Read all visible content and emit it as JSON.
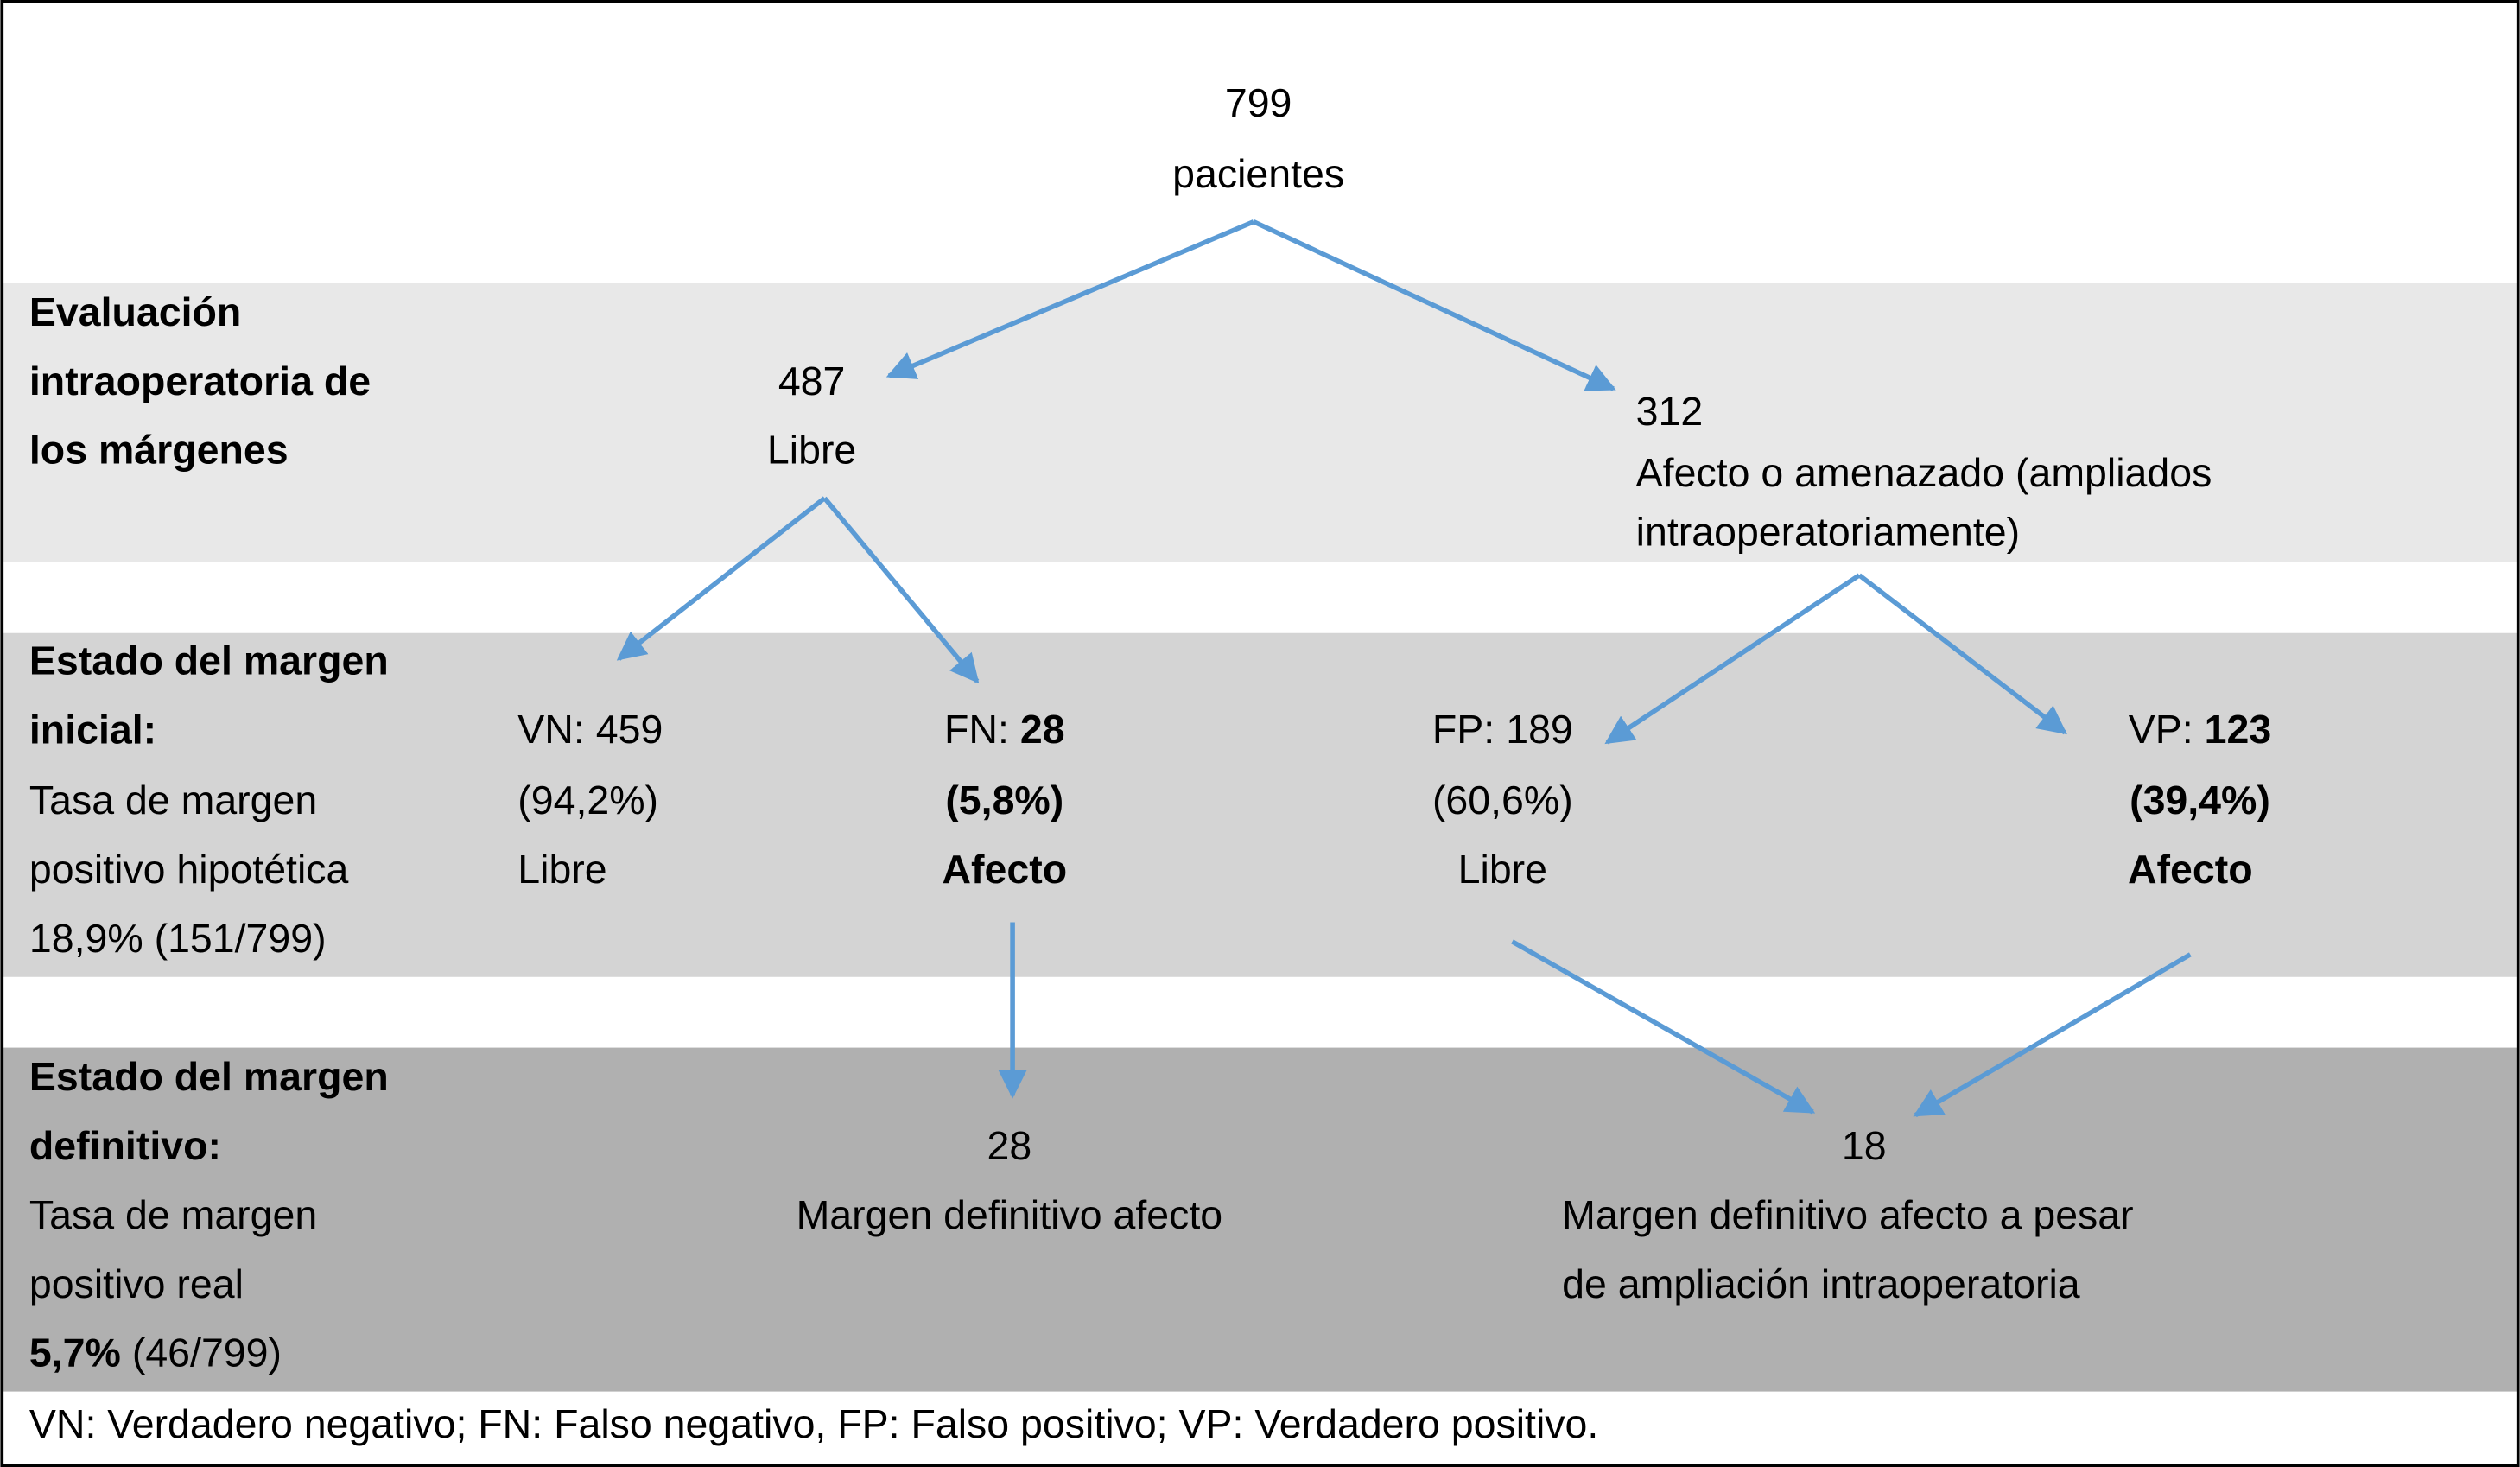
{
  "root": {
    "count": "799",
    "label": "pacientes"
  },
  "sections": [
    {
      "title": [
        "Evaluación",
        "intraoperatoria de",
        "los márgenes"
      ]
    },
    {
      "title": [
        "Estado del margen",
        "inicial:"
      ],
      "subtitle": [
        "Tasa de margen",
        "positivo hipotética"
      ],
      "rate": "18,9% (151/799)"
    },
    {
      "title": [
        "Estado del margen",
        "definitivo:"
      ],
      "subtitle": [
        "Tasa de margen",
        "positivo real"
      ],
      "rate": {
        "value": "5,7%",
        "detail": "(46/799)"
      }
    }
  ],
  "intraoperative": {
    "free": {
      "count": "487",
      "label": "Libre"
    },
    "affected": {
      "count": "312",
      "label": [
        "Afecto o amenazado (ampliados",
        "intraoperatoriamente)"
      ]
    }
  },
  "initial": [
    {
      "code": "VN:",
      "count": "459",
      "percent": "(94,2%)",
      "status": "Libre"
    },
    {
      "code": "FN:",
      "count": "28",
      "percent": "(5,8%)",
      "status": "Afecto"
    },
    {
      "code": "FP:",
      "count": "189",
      "percent": "(60,6%)",
      "status": "Libre"
    },
    {
      "code": "VP:",
      "count": "123",
      "percent": "(39,4%)",
      "status": "Afecto"
    }
  ],
  "definitive": [
    {
      "count": "28",
      "label": [
        "Margen definitivo afecto"
      ]
    },
    {
      "count": "18",
      "label": [
        "Margen definitivo afecto a pesar",
        "de ampliación intraoperatoria"
      ]
    }
  ],
  "footer": "VN: Verdadero negativo; FN: Falso negativo, FP: Falso positivo; VP: Verdadero positivo."
}
